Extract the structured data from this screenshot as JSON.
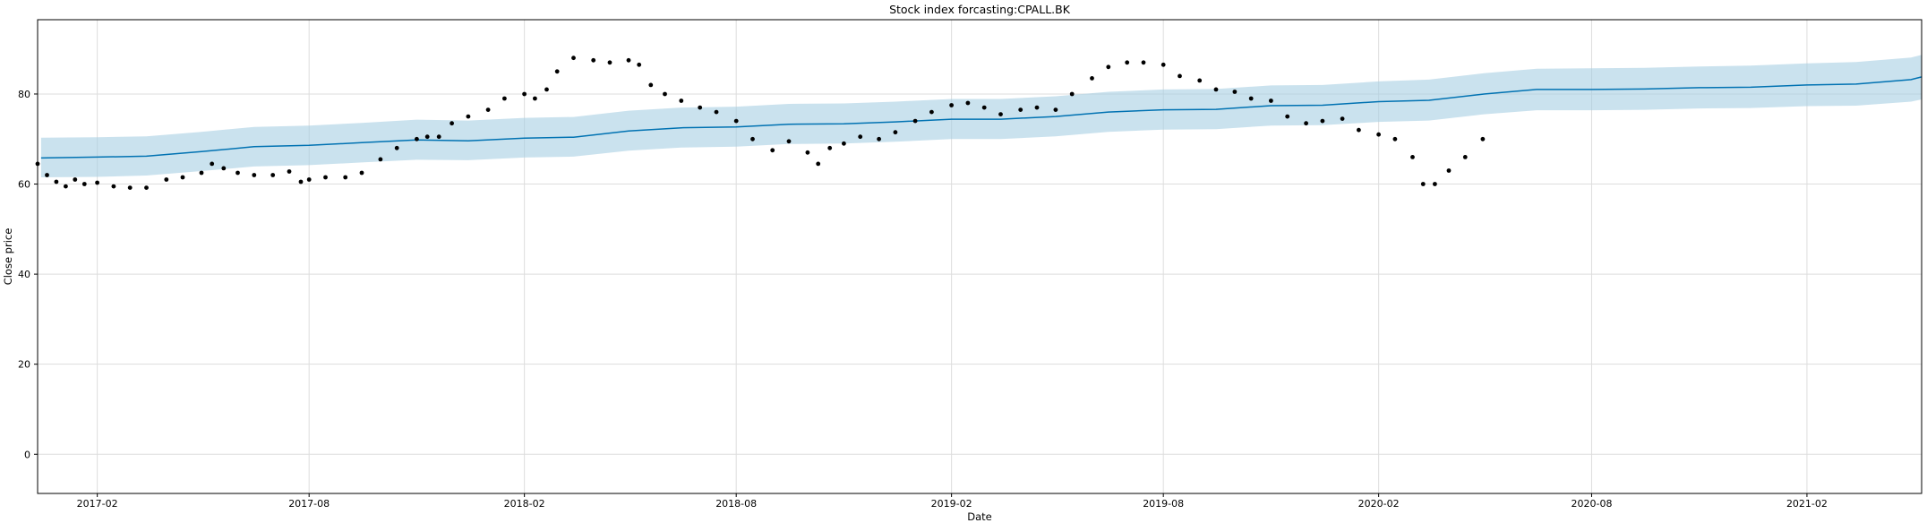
{
  "chart_data": {
    "type": "scatter",
    "title": "Stock index forcasting:CPALL.BK",
    "xlabel": "Date",
    "ylabel": "Close price",
    "x_range": [
      "2016-12-12",
      "2021-05-10"
    ],
    "ylim": [
      -8.7,
      96.5
    ],
    "yticks": [
      0,
      20,
      40,
      60,
      80
    ],
    "xticks": [
      "2017-02",
      "2017-08",
      "2018-02",
      "2018-08",
      "2019-02",
      "2019-08",
      "2020-02",
      "2020-08",
      "2021-02"
    ],
    "grid": true,
    "colors": {
      "forecast": "#0072B2",
      "band": "#A6CEE3",
      "actual": "#000000",
      "grid": "#dddddd"
    },
    "series": [
      {
        "name": "",
        "kind": "forecast",
        "x": [
          "2016-12-15",
          "2017-02-01",
          "2017-03-15",
          "2017-05-01",
          "2017-06-15",
          "2017-08-01",
          "2017-09-15",
          "2017-11-01",
          "2017-12-15",
          "2018-02-01",
          "2018-03-15",
          "2018-05-01",
          "2018-06-15",
          "2018-08-01",
          "2018-09-15",
          "2018-11-01",
          "2018-12-15",
          "2019-02-01",
          "2019-03-15",
          "2019-05-01",
          "2019-06-15",
          "2019-08-01",
          "2019-09-15",
          "2019-11-01",
          "2019-12-15",
          "2020-02-01",
          "2020-03-15",
          "2020-05-01",
          "2020-06-15",
          "2020-08-01",
          "2020-09-15",
          "2020-11-01",
          "2020-12-15",
          "2021-02-01",
          "2021-03-15",
          "2021-05-01",
          "2021-05-10"
        ],
        "y": [
          65.8,
          66.0,
          66.2,
          67.2,
          68.3,
          68.6,
          69.2,
          69.8,
          69.6,
          70.2,
          70.4,
          71.8,
          72.5,
          72.7,
          73.3,
          73.4,
          73.8,
          74.4,
          74.4,
          75.0,
          76.0,
          76.5,
          76.6,
          77.4,
          77.5,
          78.3,
          78.6,
          80.0,
          81.0,
          81.0,
          81.1,
          81.4,
          81.5,
          82.0,
          82.2,
          83.2,
          83.8
        ]
      },
      {
        "name": "",
        "kind": "interval",
        "x": [
          "2016-12-15",
          "2017-02-01",
          "2017-03-15",
          "2017-05-01",
          "2017-06-15",
          "2017-08-01",
          "2017-09-15",
          "2017-11-01",
          "2017-12-15",
          "2018-02-01",
          "2018-03-15",
          "2018-05-01",
          "2018-06-15",
          "2018-08-01",
          "2018-09-15",
          "2018-11-01",
          "2018-12-15",
          "2019-02-01",
          "2019-03-15",
          "2019-05-01",
          "2019-06-15",
          "2019-08-01",
          "2019-09-15",
          "2019-11-01",
          "2019-12-15",
          "2020-02-01",
          "2020-03-15",
          "2020-05-01",
          "2020-06-15",
          "2020-08-01",
          "2020-09-15",
          "2020-11-01",
          "2020-12-15",
          "2021-02-01",
          "2021-03-15",
          "2021-05-01",
          "2021-05-10"
        ],
        "lower": [
          61.5,
          61.6,
          61.9,
          62.9,
          63.9,
          64.2,
          64.8,
          65.4,
          65.3,
          65.9,
          66.1,
          67.4,
          68.1,
          68.3,
          68.9,
          69.0,
          69.4,
          70.0,
          70.0,
          70.6,
          71.6,
          72.1,
          72.2,
          73.0,
          73.1,
          73.8,
          74.1,
          75.5,
          76.4,
          76.4,
          76.5,
          76.8,
          76.9,
          77.3,
          77.4,
          78.3,
          78.8
        ],
        "upper": [
          70.3,
          70.4,
          70.6,
          71.6,
          72.7,
          73.0,
          73.6,
          74.3,
          74.1,
          74.7,
          74.9,
          76.3,
          77.0,
          77.2,
          77.8,
          77.9,
          78.3,
          78.9,
          78.9,
          79.5,
          80.5,
          81.0,
          81.1,
          81.9,
          82.0,
          82.8,
          83.2,
          84.6,
          85.6,
          85.7,
          85.8,
          86.1,
          86.3,
          86.8,
          87.1,
          88.1,
          88.7
        ]
      },
      {
        "name": "",
        "kind": "actual",
        "x": [
          "2016-12-12",
          "2016-12-20",
          "2016-12-28",
          "2017-01-05",
          "2017-01-13",
          "2017-01-21",
          "2017-02-01",
          "2017-02-15",
          "2017-03-01",
          "2017-03-15",
          "2017-04-01",
          "2017-04-15",
          "2017-05-01",
          "2017-05-10",
          "2017-05-20",
          "2017-06-01",
          "2017-06-15",
          "2017-07-01",
          "2017-07-15",
          "2017-07-25",
          "2017-08-01",
          "2017-08-15",
          "2017-09-01",
          "2017-09-15",
          "2017-10-01",
          "2017-10-15",
          "2017-11-01",
          "2017-11-10",
          "2017-11-20",
          "2017-12-01",
          "2017-12-15",
          "2018-01-01",
          "2018-01-15",
          "2018-02-01",
          "2018-02-10",
          "2018-02-20",
          "2018-03-01",
          "2018-03-15",
          "2018-04-01",
          "2018-04-15",
          "2018-05-01",
          "2018-05-10",
          "2018-05-20",
          "2018-06-01",
          "2018-06-15",
          "2018-07-01",
          "2018-07-15",
          "2018-08-01",
          "2018-08-15",
          "2018-09-01",
          "2018-09-15",
          "2018-10-01",
          "2018-10-10",
          "2018-10-20",
          "2018-11-01",
          "2018-11-15",
          "2018-12-01",
          "2018-12-15",
          "2019-01-01",
          "2019-01-15",
          "2019-02-01",
          "2019-02-15",
          "2019-03-01",
          "2019-03-15",
          "2019-04-01",
          "2019-04-15",
          "2019-05-01",
          "2019-05-15",
          "2019-06-01",
          "2019-06-15",
          "2019-07-01",
          "2019-07-15",
          "2019-08-01",
          "2019-08-15",
          "2019-09-01",
          "2019-09-15",
          "2019-10-01",
          "2019-10-15",
          "2019-11-01",
          "2019-11-15",
          "2019-12-01",
          "2019-12-15",
          "2020-01-01",
          "2020-01-15",
          "2020-02-01",
          "2020-02-15",
          "2020-03-01",
          "2020-03-10",
          "2020-03-20",
          "2020-04-01",
          "2020-04-15",
          "2020-04-30"
        ],
        "y": [
          64.5,
          62.0,
          60.5,
          59.5,
          61.0,
          60.0,
          60.3,
          59.5,
          59.2,
          59.2,
          61.0,
          61.5,
          62.5,
          64.5,
          63.5,
          62.5,
          62.0,
          62.0,
          62.8,
          60.5,
          61.0,
          61.5,
          61.5,
          62.5,
          65.5,
          68.0,
          70.0,
          70.5,
          70.5,
          73.5,
          75.0,
          76.5,
          79.0,
          80.0,
          79.0,
          81.0,
          85.0,
          88.0,
          87.5,
          87.0,
          87.5,
          86.5,
          82.0,
          80.0,
          78.5,
          77.0,
          76.0,
          74.0,
          70.0,
          67.5,
          69.5,
          67.0,
          64.5,
          68.0,
          69.0,
          70.5,
          70.0,
          71.5,
          74.0,
          76.0,
          77.5,
          78.0,
          77.0,
          75.5,
          76.5,
          77.0,
          76.5,
          80.0,
          83.5,
          86.0,
          87.0,
          87.0,
          86.5,
          84.0,
          83.0,
          81.0,
          80.5,
          79.0,
          78.5,
          75.0,
          73.5,
          74.0,
          74.5,
          72.0,
          71.0,
          70.0,
          66.0,
          60.0,
          60.0,
          63.0,
          66.0,
          70.0
        ]
      }
    ]
  }
}
